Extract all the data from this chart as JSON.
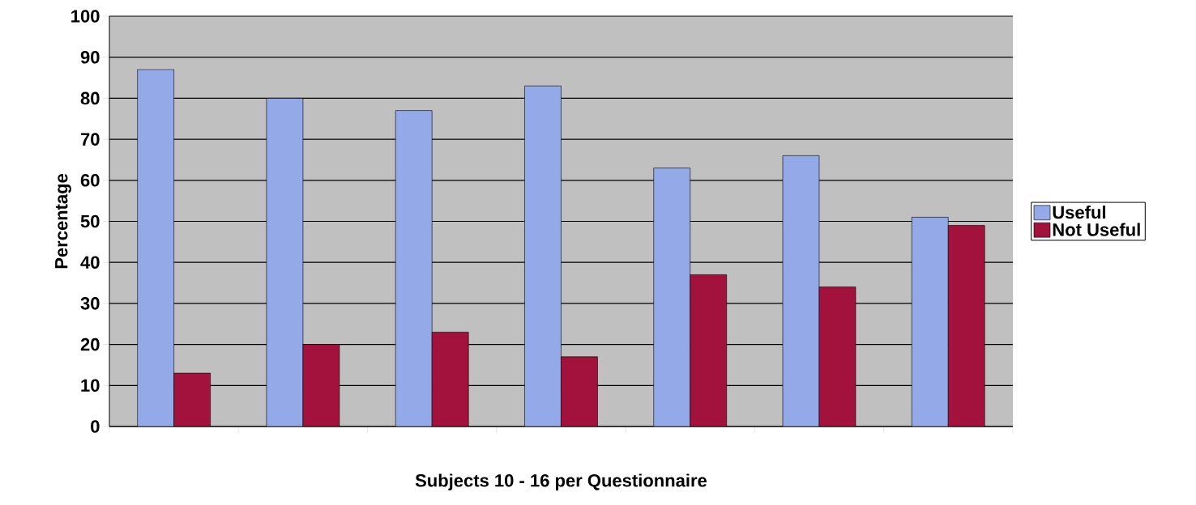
{
  "chart_data": {
    "type": "bar",
    "xlabel": "Subjects 10 - 16 per Questionnaire",
    "ylabel": "Percentage",
    "categories": [
      null,
      null,
      null,
      null,
      null,
      null,
      null
    ],
    "series": [
      {
        "name": "Useful",
        "color": "#93a9e8",
        "values": [
          87,
          80,
          77,
          83,
          63,
          66,
          51
        ]
      },
      {
        "name": "Not Useful",
        "color": "#a3123c",
        "values": [
          13,
          20,
          23,
          17,
          37,
          34,
          49
        ]
      }
    ],
    "ylim": [
      0,
      100
    ],
    "yticks": [
      0,
      10,
      20,
      30,
      40,
      50,
      60,
      70,
      80,
      90,
      100
    ],
    "grid": "y",
    "legend": "right"
  }
}
